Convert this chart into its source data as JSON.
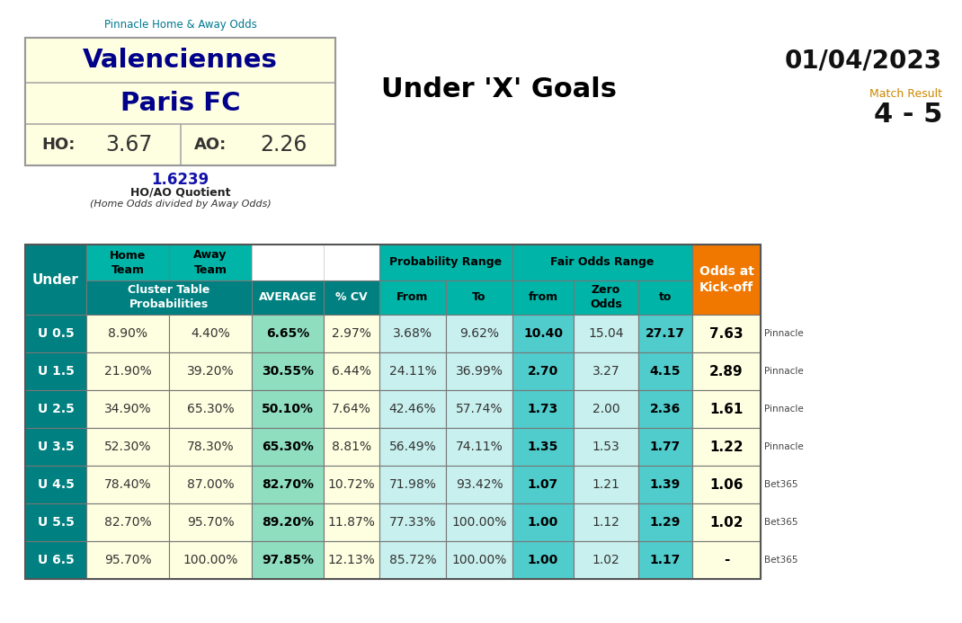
{
  "home_team": "Valenciennes",
  "away_team": "Paris FC",
  "ho": "3.67",
  "ao": "2.26",
  "quotient": "1.6239",
  "quotient_label": "HO/AO Quotient",
  "quotient_sublabel": "(Home Odds divided by Away Odds)",
  "pinnacle_label": "Pinnacle Home & Away Odds",
  "title": "Under 'X' Goals",
  "date": "01/04/2023",
  "match_result_label": "Match Result",
  "match_result": "4 - 5",
  "under_labels": [
    "U 0.5",
    "U 1.5",
    "U 2.5",
    "U 3.5",
    "U 4.5",
    "U 5.5",
    "U 6.5"
  ],
  "home_probs": [
    "8.90%",
    "21.90%",
    "34.90%",
    "52.30%",
    "78.40%",
    "82.70%",
    "95.70%"
  ],
  "away_probs": [
    "4.40%",
    "39.20%",
    "65.30%",
    "78.30%",
    "87.00%",
    "95.70%",
    "100.00%"
  ],
  "averages": [
    "6.65%",
    "30.55%",
    "50.10%",
    "65.30%",
    "82.70%",
    "89.20%",
    "97.85%"
  ],
  "cv": [
    "2.97%",
    "6.44%",
    "7.64%",
    "8.81%",
    "10.72%",
    "11.87%",
    "12.13%"
  ],
  "prob_from": [
    "3.68%",
    "24.11%",
    "42.46%",
    "56.49%",
    "71.98%",
    "77.33%",
    "85.72%"
  ],
  "prob_to": [
    "9.62%",
    "36.99%",
    "57.74%",
    "74.11%",
    "93.42%",
    "100.00%",
    "100.00%"
  ],
  "fair_from": [
    "10.40",
    "2.70",
    "1.73",
    "1.35",
    "1.07",
    "1.00",
    "1.00"
  ],
  "fair_zero": [
    "15.04",
    "3.27",
    "2.00",
    "1.53",
    "1.21",
    "1.12",
    "1.02"
  ],
  "fair_to": [
    "27.17",
    "4.15",
    "2.36",
    "1.77",
    "1.39",
    "1.29",
    "1.17"
  ],
  "kickoff_odds": [
    "7.63",
    "2.89",
    "1.61",
    "1.22",
    "1.06",
    "1.02",
    "-"
  ],
  "bookmakers": [
    "Pinnacle",
    "Pinnacle",
    "Pinnacle",
    "Pinnacle",
    "Bet365",
    "Bet365",
    "Bet365"
  ],
  "teal_dark": "#008080",
  "teal_header": "#00B5A8",
  "yellow_light": "#FEFEE0",
  "avg_col_bg": "#90DEC0",
  "fair_col_bg": "#50CCCC",
  "prob_col_bg": "#C8F0EE",
  "orange_col": "#F07800",
  "white": "#FFFFFF",
  "bg_color": "#FFFFFF",
  "border_color": "#707070",
  "text_dark": "#222222",
  "text_blue": "#00008B",
  "text_teal_link": "#007890",
  "text_orange": "#CC8800"
}
